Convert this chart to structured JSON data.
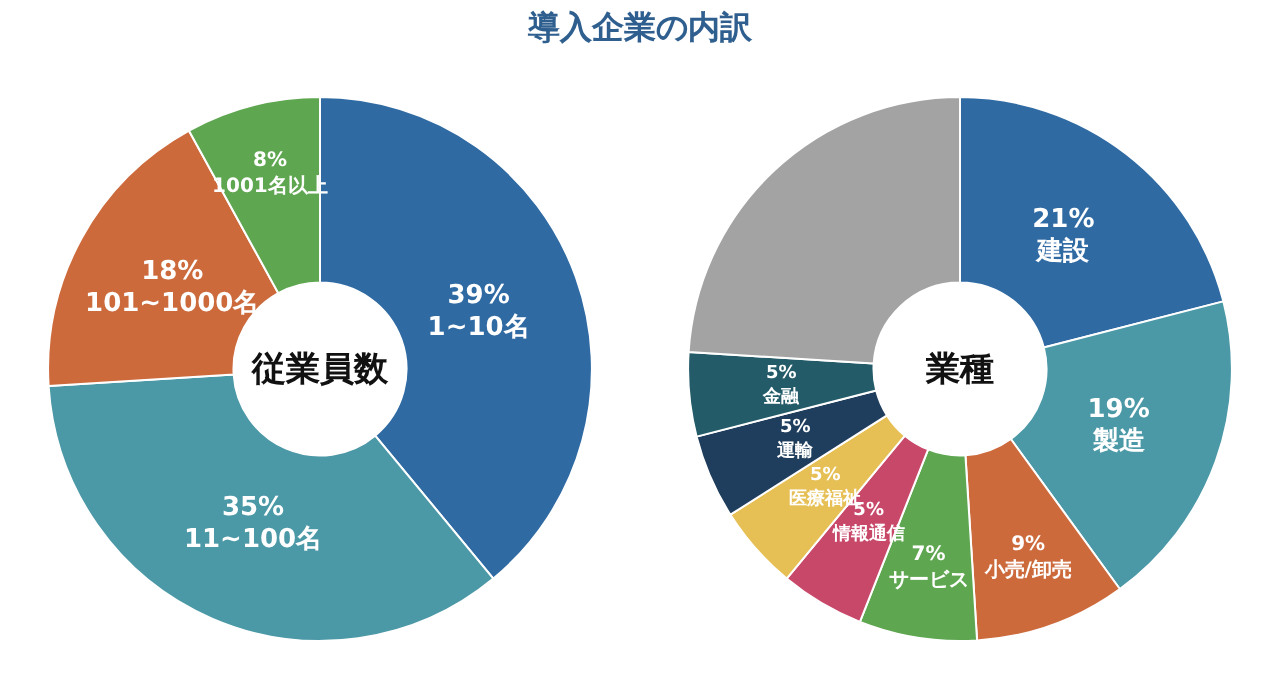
{
  "chart_data": [
    {
      "type": "donut",
      "title": "従業員数",
      "annotations": [
        "導入企業の内訳"
      ],
      "categories": [
        "1~10名",
        "11~100名",
        "101~1000名",
        "1001名以上"
      ],
      "values": [
        39,
        35,
        18,
        8
      ],
      "colors": [
        "#2f6aa3",
        "#4b98a6",
        "#cc6a3c",
        "#5ea650"
      ],
      "value_labels": [
        "39%",
        "35%",
        "18%",
        "8%"
      ],
      "legend": false
    },
    {
      "type": "donut",
      "title": "業種",
      "categories": [
        "建設",
        "製造",
        "小売/卸売",
        "サービス",
        "情報通信",
        "医療福祉",
        "運輸",
        "金融",
        null
      ],
      "values": [
        21,
        19,
        9,
        7,
        5,
        5,
        5,
        5,
        24
      ],
      "colors": [
        "#2f6aa3",
        "#4b98a6",
        "#cc6a3c",
        "#5ea650",
        "#c8486a",
        "#e6bf55",
        "#1f3d5c",
        "#235b68",
        "#a3a3a3"
      ],
      "value_labels": [
        "21%",
        "19%",
        "9%",
        "7%",
        "5%",
        "5%",
        "5%",
        "5%",
        null
      ],
      "legend": false
    }
  ]
}
